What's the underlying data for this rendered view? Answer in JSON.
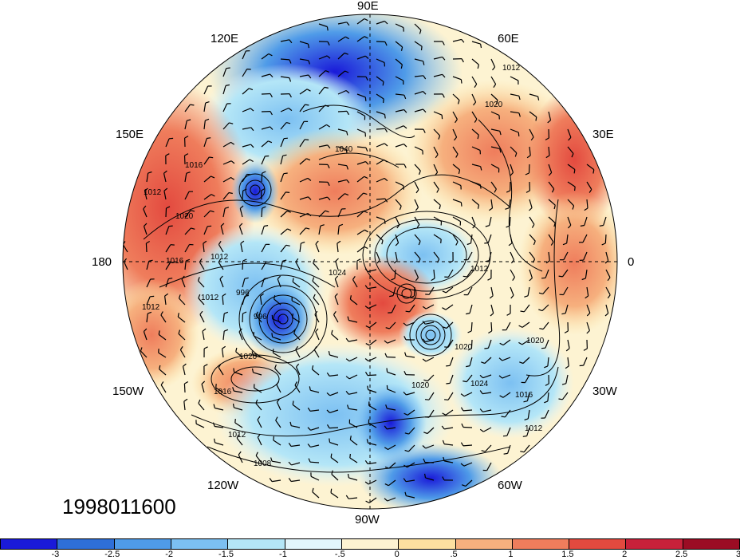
{
  "date_label": "1998011600",
  "longitude_labels": [
    {
      "id": "90e",
      "text": "90E"
    },
    {
      "id": "120e",
      "text": "120E"
    },
    {
      "id": "60e",
      "text": "60E"
    },
    {
      "id": "150e",
      "text": "150E"
    },
    {
      "id": "30e",
      "text": "30E"
    },
    {
      "id": "180",
      "text": "180"
    },
    {
      "id": "0",
      "text": "0"
    },
    {
      "id": "150w",
      "text": "150W"
    },
    {
      "id": "30w",
      "text": "30W"
    },
    {
      "id": "120w",
      "text": "120W"
    },
    {
      "id": "60w",
      "text": "60W"
    },
    {
      "id": "90w",
      "text": "90W"
    }
  ],
  "isobar_labels": [
    "1012",
    "1020",
    "1040",
    "1016",
    "1012",
    "1020",
    "1016",
    "1012",
    "1012",
    "996",
    "996",
    "1024",
    "1012",
    "1020",
    "1020",
    "1020",
    "1024",
    "1016",
    "1012",
    "1020",
    "1016",
    "1012",
    "1008",
    "1012"
  ],
  "colorbar": {
    "colors": [
      "#1a1ad9",
      "#2e6fd8",
      "#4f9be8",
      "#7cc0f2",
      "#b4e6f7",
      "#e2f5fb",
      "#fdf3d2",
      "#fde0a0",
      "#f6b07e",
      "#ef7d5c",
      "#e34a3f",
      "#c8213a",
      "#9b0c24"
    ],
    "ticks": [
      "-3",
      "-2.5",
      "-2",
      "-1.5",
      "-1",
      "-.5",
      "0",
      ".5",
      "1",
      "1.5",
      "2",
      "2.5",
      "3"
    ]
  }
}
